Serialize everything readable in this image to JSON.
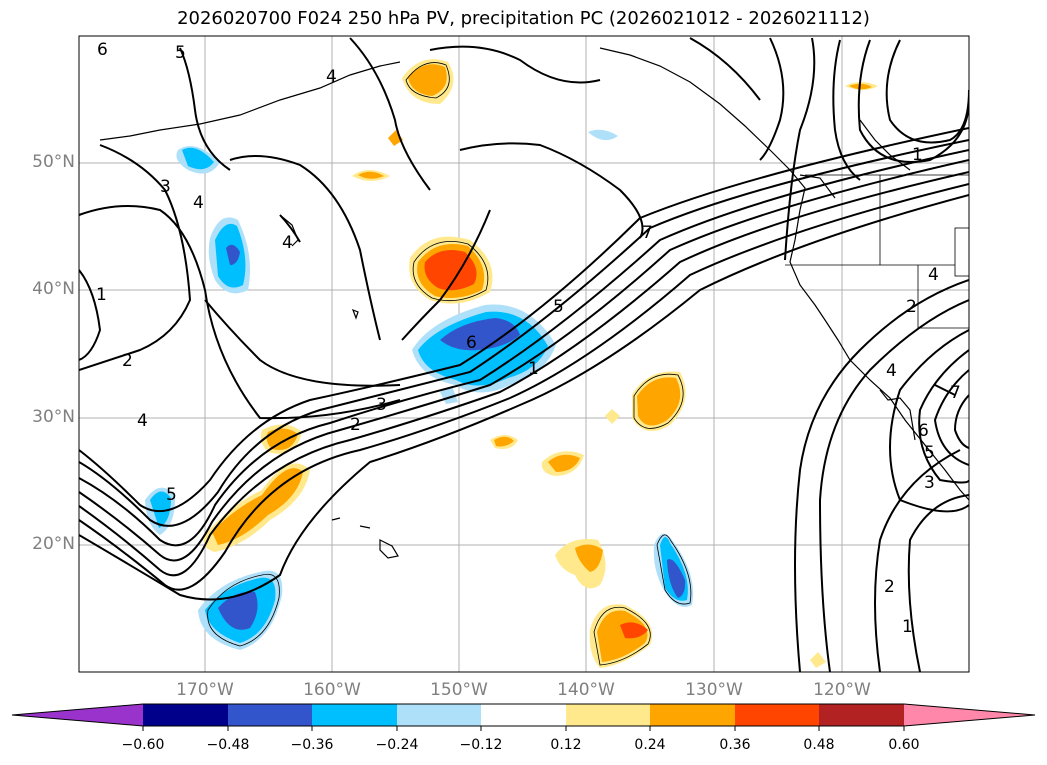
{
  "title": "2026020700 F024 250 hPa PV, precipitation PC (2026021012 - 2026021112)",
  "lat_labels": [
    "50°N",
    "40°N",
    "30°N",
    "20°N"
  ],
  "lon_labels": [
    "170°W",
    "160°W",
    "150°W",
    "140°W",
    "130°W",
    "120°W"
  ],
  "colorbar": {
    "ticks": [
      "−0.60",
      "−0.48",
      "−0.36",
      "−0.24",
      "−0.12",
      "0.12",
      "0.24",
      "0.36",
      "0.48",
      "0.60"
    ],
    "colors": [
      "#9933cc",
      "#00008b",
      "#3355cc",
      "#00bfff",
      "#aee0fa",
      "#ffffff",
      "#ffe98c",
      "#ffa500",
      "#ff4500",
      "#b22222",
      "#ff88aa"
    ]
  },
  "contour_labels": {
    "pv1_west": "1",
    "pv2_west": "2",
    "pv3_nw": "3",
    "pv4_nw": "4",
    "pv4_sw": "4",
    "pv5_nw": "5",
    "pv6_nw": "6",
    "pv4_north": "4",
    "pv4_center": "4",
    "pv5_sw": "5",
    "pv2_jet": "2",
    "pv3_jet": "3",
    "pv6_jet": "6",
    "pv1_jet": "1",
    "pv5_jet": "5",
    "pv7_jet": "7",
    "pv1_ne": "1",
    "pv2_se": "2",
    "pv1_se": "1",
    "pv4_coast": "4",
    "pv2_coast": "2",
    "pv7_e": "7",
    "pv6_e": "6",
    "pv5_e": "5",
    "pv3_e": "3",
    "pv4_e": "4"
  }
}
